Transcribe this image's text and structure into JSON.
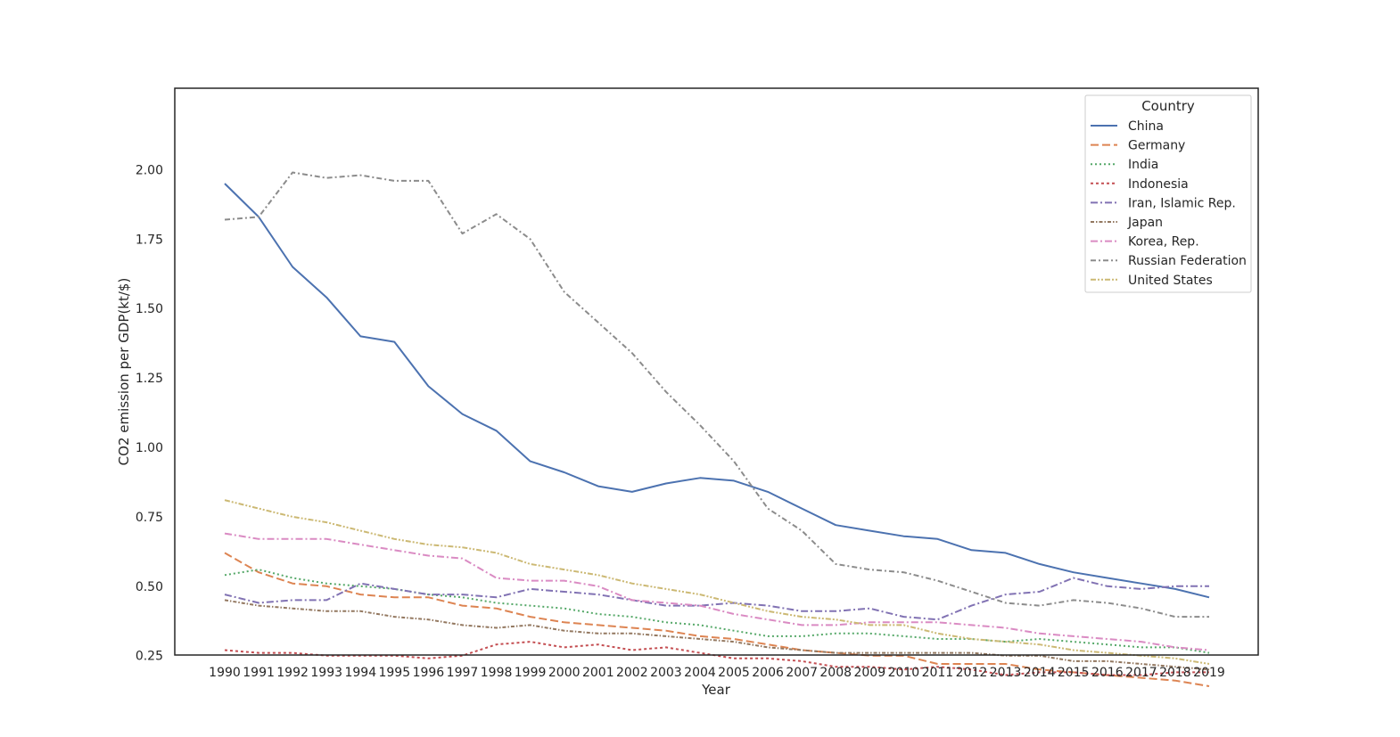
{
  "chart_data": {
    "type": "line",
    "xlabel": "Year",
    "ylabel": "CO2 emission per GDP(kt/$)",
    "x": [
      1990,
      1991,
      1992,
      1993,
      1994,
      1995,
      1996,
      1997,
      1998,
      1999,
      2000,
      2001,
      2002,
      2003,
      2004,
      2005,
      2006,
      2007,
      2008,
      2009,
      2010,
      2011,
      2012,
      2013,
      2014,
      2015,
      2016,
      2017,
      2018,
      2019
    ],
    "yticks": [
      0.25,
      0.5,
      0.75,
      1.0,
      1.25,
      1.5,
      1.75,
      2.0
    ],
    "ytick_labels": [
      "0.25",
      "0.50",
      "0.75",
      "1.00",
      "1.25",
      "1.50",
      "1.75",
      "2.00"
    ],
    "ylim": [
      0.0,
      2.1
    ],
    "grid": false,
    "legend": {
      "title": "Country",
      "position": "top-right"
    },
    "series": [
      {
        "name": "China",
        "color": "#4c72b0",
        "dash": "solid",
        "values": [
          1.95,
          1.83,
          1.65,
          1.54,
          1.4,
          1.38,
          1.22,
          1.12,
          1.06,
          0.95,
          0.91,
          0.86,
          0.84,
          0.87,
          0.89,
          0.88,
          0.84,
          0.78,
          0.72,
          0.7,
          0.68,
          0.67,
          0.63,
          0.62,
          0.58,
          0.55,
          0.53,
          0.51,
          0.49,
          0.46
        ]
      },
      {
        "name": "Germany",
        "color": "#dd8452",
        "dash": "dashed",
        "values": [
          0.62,
          0.55,
          0.51,
          0.5,
          0.47,
          0.46,
          0.46,
          0.43,
          0.42,
          0.39,
          0.37,
          0.36,
          0.35,
          0.34,
          0.32,
          0.31,
          0.29,
          0.27,
          0.26,
          0.25,
          0.25,
          0.22,
          0.22,
          0.22,
          0.2,
          0.19,
          0.18,
          0.17,
          0.16,
          0.14
        ]
      },
      {
        "name": "India",
        "color": "#55a868",
        "dash": "dotted",
        "values": [
          0.54,
          0.56,
          0.53,
          0.51,
          0.5,
          0.49,
          0.47,
          0.46,
          0.44,
          0.43,
          0.42,
          0.4,
          0.39,
          0.37,
          0.36,
          0.34,
          0.32,
          0.32,
          0.33,
          0.33,
          0.32,
          0.31,
          0.31,
          0.3,
          0.31,
          0.3,
          0.29,
          0.28,
          0.28,
          0.26
        ]
      },
      {
        "name": "Indonesia",
        "color": "#c44e52",
        "dash": "densedot",
        "values": [
          0.27,
          0.26,
          0.26,
          0.25,
          0.25,
          0.25,
          0.24,
          0.25,
          0.29,
          0.3,
          0.28,
          0.29,
          0.27,
          0.28,
          0.26,
          0.24,
          0.24,
          0.23,
          0.21,
          0.21,
          0.2,
          0.21,
          0.2,
          0.18,
          0.19,
          0.19,
          0.18,
          0.18,
          0.19,
          0.19
        ]
      },
      {
        "name": "Iran, Islamic Rep.",
        "color": "#8172b3",
        "dash": "dashdot",
        "values": [
          0.47,
          0.44,
          0.45,
          0.45,
          0.51,
          0.49,
          0.47,
          0.47,
          0.46,
          0.49,
          0.48,
          0.47,
          0.45,
          0.43,
          0.43,
          0.44,
          0.43,
          0.41,
          0.41,
          0.42,
          0.39,
          0.38,
          0.43,
          0.47,
          0.48,
          0.53,
          0.5,
          0.49,
          0.5,
          0.5
        ]
      },
      {
        "name": "Japan",
        "color": "#937860",
        "dash": "densedashdot",
        "values": [
          0.45,
          0.43,
          0.42,
          0.41,
          0.41,
          0.39,
          0.38,
          0.36,
          0.35,
          0.36,
          0.34,
          0.33,
          0.33,
          0.32,
          0.31,
          0.3,
          0.28,
          0.27,
          0.26,
          0.26,
          0.26,
          0.26,
          0.26,
          0.25,
          0.25,
          0.23,
          0.23,
          0.22,
          0.21,
          0.2
        ]
      },
      {
        "name": "Korea, Rep.",
        "color": "#da8bc3",
        "dash": "dashdot",
        "values": [
          0.69,
          0.67,
          0.67,
          0.67,
          0.65,
          0.63,
          0.61,
          0.6,
          0.53,
          0.52,
          0.52,
          0.5,
          0.45,
          0.44,
          0.43,
          0.4,
          0.38,
          0.36,
          0.36,
          0.37,
          0.37,
          0.37,
          0.36,
          0.35,
          0.33,
          0.32,
          0.31,
          0.3,
          0.28,
          0.27
        ]
      },
      {
        "name": "Russian Federation",
        "color": "#8c8c8c",
        "dash": "dashdot2",
        "values": [
          1.82,
          1.83,
          1.99,
          1.97,
          1.98,
          1.96,
          1.96,
          1.77,
          1.84,
          1.75,
          1.56,
          1.45,
          1.34,
          1.2,
          1.08,
          0.95,
          0.78,
          0.7,
          0.58,
          0.56,
          0.55,
          0.52,
          0.48,
          0.44,
          0.43,
          0.45,
          0.44,
          0.42,
          0.39,
          0.39
        ]
      },
      {
        "name": "United States",
        "color": "#ccb974",
        "dash": "dashdotdot",
        "values": [
          0.81,
          0.78,
          0.75,
          0.73,
          0.7,
          0.67,
          0.65,
          0.64,
          0.62,
          0.58,
          0.56,
          0.54,
          0.51,
          0.49,
          0.47,
          0.44,
          0.41,
          0.39,
          0.38,
          0.36,
          0.36,
          0.33,
          0.31,
          0.3,
          0.29,
          0.27,
          0.26,
          0.25,
          0.24,
          0.22
        ]
      }
    ]
  }
}
